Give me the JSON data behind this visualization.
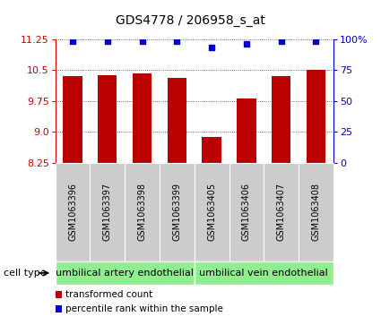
{
  "title": "GDS4778 / 206958_s_at",
  "samples": [
    "GSM1063396",
    "GSM1063397",
    "GSM1063398",
    "GSM1063399",
    "GSM1063405",
    "GSM1063406",
    "GSM1063407",
    "GSM1063408"
  ],
  "transformed_counts": [
    10.35,
    10.38,
    10.42,
    10.3,
    8.87,
    9.8,
    10.35,
    10.5
  ],
  "percentile_ranks": [
    98,
    98,
    98,
    98,
    93,
    96,
    98,
    98
  ],
  "ylim": [
    8.25,
    11.25
  ],
  "yticks": [
    8.25,
    9.0,
    9.75,
    10.5,
    11.25
  ],
  "right_yticks": [
    0,
    25,
    50,
    75,
    100
  ],
  "right_ylabels": [
    "0",
    "25",
    "50",
    "75",
    "100%"
  ],
  "bar_color": "#bb0000",
  "dot_color": "#0000cc",
  "cell_type_groups": [
    {
      "label": "umbilical artery endothelial",
      "count": 4,
      "color": "#90ee90"
    },
    {
      "label": "umbilical vein endothelial",
      "count": 4,
      "color": "#90ee90"
    }
  ],
  "cell_type_label": "cell type",
  "legend_items": [
    {
      "color": "#bb0000",
      "label": "transformed count"
    },
    {
      "color": "#0000cc",
      "label": "percentile rank within the sample"
    }
  ],
  "tick_label_color": "#cc0000",
  "right_label_color": "#0000cc",
  "background_color": "#ffffff",
  "gray_color": "#cccccc",
  "title_fontsize": 10,
  "axis_fontsize": 8,
  "sample_fontsize": 7,
  "cell_type_fontsize": 8,
  "legend_fontsize": 7.5,
  "bar_width": 0.55,
  "grid_linestyle": ":",
  "grid_linewidth": 0.6,
  "grid_color": "#444444"
}
